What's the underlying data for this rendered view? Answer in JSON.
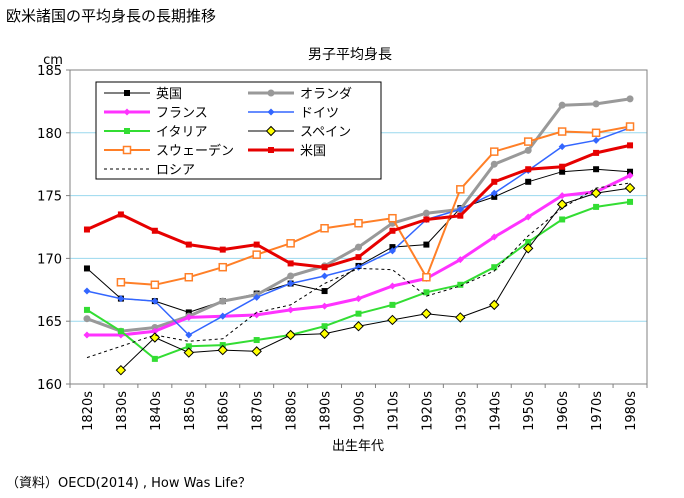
{
  "page_title": "欧米諸国の平均身長の長期推移",
  "source": "（資料）OECD(2014) , How Was Life？",
  "colors": {
    "uk": "#000000",
    "netherlands": "#999999",
    "france": "#ff33ff",
    "germany": "#3366ff",
    "italy": "#33dd33",
    "spain": "#000000",
    "spain_fill": "#ffff00",
    "sweden": "#ff7f27",
    "usa": "#e60000",
    "russia": "#000000",
    "grid": "#9ad8ee"
  },
  "chart_data": {
    "type": "line",
    "title": "男子平均身長",
    "unit_label": "cm",
    "xlabel": "出生年代",
    "ylabel": "cm",
    "ylim": [
      160,
      185
    ],
    "yticks": [
      160,
      165,
      170,
      175,
      180,
      185
    ],
    "categories": [
      "1820s",
      "1830s",
      "1840s",
      "1850s",
      "1860s",
      "1870s",
      "1880s",
      "1890s",
      "1900s",
      "1910s",
      "1920s",
      "1930s",
      "1940s",
      "1950s",
      "1960s",
      "1970s",
      "1980s"
    ],
    "series": [
      {
        "key": "uk",
        "name": "英国",
        "marker": "square-filled",
        "values": [
          169.2,
          166.8,
          166.6,
          165.7,
          166.6,
          167.2,
          168.0,
          167.4,
          169.4,
          170.9,
          171.1,
          174.0,
          174.9,
          176.1,
          176.9,
          177.1,
          176.9
        ]
      },
      {
        "key": "netherlands",
        "name": "オランダ",
        "marker": "circle-filled",
        "values": [
          165.2,
          164.2,
          164.5,
          165.4,
          166.6,
          167.1,
          168.6,
          169.4,
          170.9,
          172.8,
          173.6,
          173.9,
          177.5,
          178.6,
          182.2,
          182.3,
          182.7
        ]
      },
      {
        "key": "france",
        "name": "フランス",
        "marker": "diamond-filled",
        "values": [
          163.9,
          163.9,
          164.2,
          165.3,
          165.4,
          165.5,
          165.9,
          166.2,
          166.8,
          167.8,
          168.4,
          169.9,
          171.7,
          173.3,
          175.0,
          175.3,
          176.6
        ]
      },
      {
        "key": "germany",
        "name": "ドイツ",
        "marker": "diamond-filled",
        "values": [
          167.4,
          166.8,
          166.6,
          163.9,
          165.4,
          166.9,
          168.0,
          168.6,
          169.3,
          170.6,
          173.1,
          173.9,
          175.2,
          177.0,
          178.9,
          179.4,
          180.4
        ]
      },
      {
        "key": "italy",
        "name": "イタリア",
        "marker": "square-filled",
        "values": [
          165.9,
          164.2,
          162.0,
          163.0,
          163.1,
          163.5,
          163.9,
          164.6,
          165.6,
          166.3,
          167.3,
          167.9,
          169.3,
          171.3,
          173.1,
          174.1,
          174.5
        ]
      },
      {
        "key": "spain",
        "name": "スペイン",
        "marker": "diamond-yellow",
        "values": [
          null,
          161.1,
          163.7,
          162.5,
          162.7,
          162.6,
          163.9,
          164.0,
          164.6,
          165.1,
          165.6,
          165.3,
          166.3,
          170.8,
          174.3,
          175.2,
          175.6
        ]
      },
      {
        "key": "sweden",
        "name": "スウェーデン",
        "marker": "square-open",
        "values": [
          null,
          168.1,
          167.9,
          168.5,
          169.3,
          170.3,
          171.2,
          172.4,
          172.8,
          173.2,
          168.5,
          175.5,
          178.5,
          179.3,
          180.1,
          180.0,
          180.5
        ]
      },
      {
        "key": "usa",
        "name": "米国",
        "marker": "square-filled",
        "values": [
          172.3,
          173.5,
          172.2,
          171.1,
          170.7,
          171.1,
          169.6,
          169.3,
          170.1,
          172.2,
          173.1,
          173.4,
          176.1,
          177.1,
          177.3,
          178.4,
          179.0
        ]
      },
      {
        "key": "russia",
        "name": "ロシア",
        "marker": "none",
        "dashed": true,
        "values": [
          162.1,
          163.0,
          163.9,
          163.4,
          163.6,
          165.7,
          166.3,
          168.0,
          169.2,
          169.1,
          167.0,
          167.8,
          169.0,
          171.8,
          174.0,
          175.6,
          176.0
        ]
      }
    ]
  }
}
